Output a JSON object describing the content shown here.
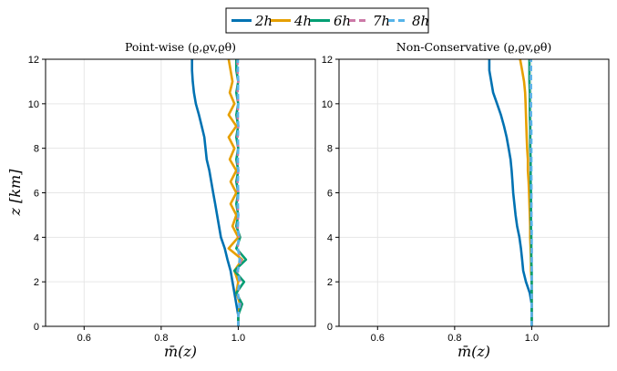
{
  "figure_title": "",
  "colors": {
    "2h": "#0072B2",
    "4h": "#E69F00",
    "6h": "#009E73",
    "7h": "#CC79A7",
    "8h": "#56B4E9",
    "grid": "#e6e6e6",
    "frame": "#000000"
  },
  "legend": {
    "items": [
      {
        "label": "2h",
        "color": "#0072B2",
        "dash": "solid"
      },
      {
        "label": "4h",
        "color": "#E69F00",
        "dash": "solid"
      },
      {
        "label": "6h",
        "color": "#009E73",
        "dash": "solid"
      },
      {
        "label": "7h",
        "color": "#CC79A7",
        "dash": "dashed"
      },
      {
        "label": "8h",
        "color": "#56B4E9",
        "dash": "dashed"
      }
    ]
  },
  "chart_data": [
    {
      "type": "line",
      "title": "Point-wise (ϱ,ϱv,ϱθ)",
      "xlabel": "m̄(z)",
      "ylabel": "z [km]",
      "xlim": [
        0.5,
        1.2
      ],
      "ylim": [
        0,
        12
      ],
      "xticks": [
        "0.6",
        "0.8",
        "1.0"
      ],
      "xtick_values": [
        0.6,
        0.8,
        1.0
      ],
      "yticks": [
        "0",
        "2",
        "4",
        "6",
        "8",
        "10",
        "12"
      ],
      "ytick_values": [
        0,
        2,
        4,
        6,
        8,
        10,
        12
      ],
      "grid": true,
      "series": [
        {
          "name": "2h",
          "z": [
            0.0,
            0.5,
            1.0,
            1.5,
            2.0,
            2.5,
            3.0,
            3.5,
            4.0,
            4.5,
            5.0,
            5.5,
            6.0,
            6.5,
            7.0,
            7.5,
            8.0,
            8.5,
            9.0,
            9.5,
            10.0,
            10.5,
            11.0,
            11.5,
            12.0
          ],
          "m": [
            1.0,
            1.0,
            0.995,
            0.99,
            0.985,
            0.98,
            0.972,
            0.965,
            0.955,
            0.95,
            0.945,
            0.94,
            0.935,
            0.93,
            0.925,
            0.918,
            0.915,
            0.912,
            0.905,
            0.898,
            0.89,
            0.885,
            0.882,
            0.88,
            0.88
          ]
        },
        {
          "name": "4h",
          "z": [
            0.0,
            0.5,
            1.0,
            1.5,
            2.0,
            2.5,
            3.0,
            3.5,
            4.0,
            4.5,
            5.0,
            5.5,
            6.0,
            6.5,
            7.0,
            7.5,
            8.0,
            8.5,
            9.0,
            9.5,
            10.0,
            10.5,
            11.0,
            11.5,
            12.0
          ],
          "m": [
            1.0,
            1.0,
            1.005,
            0.995,
            1.0,
            0.99,
            1.01,
            0.975,
            1.0,
            0.985,
            0.995,
            0.98,
            0.995,
            0.98,
            0.995,
            0.978,
            0.99,
            0.975,
            0.995,
            0.975,
            0.99,
            0.978,
            0.985,
            0.98,
            0.975
          ]
        },
        {
          "name": "6h",
          "z": [
            0.0,
            0.5,
            1.0,
            1.5,
            2.0,
            2.5,
            3.0,
            3.5,
            4.0,
            4.5,
            5.0,
            5.5,
            6.0,
            6.5,
            7.0,
            7.5,
            8.0,
            8.5,
            9.0,
            9.5,
            10.0,
            10.5,
            11.0,
            11.5,
            12.0
          ],
          "m": [
            1.0,
            1.0,
            1.01,
            0.995,
            1.015,
            0.99,
            1.02,
            0.995,
            1.005,
            0.995,
            1.0,
            0.995,
            1.0,
            0.995,
            1.0,
            0.995,
            1.0,
            0.995,
            1.0,
            0.995,
            1.0,
            0.995,
            1.0,
            0.995,
            0.995
          ]
        },
        {
          "name": "7h",
          "z": [
            0.0,
            0.5,
            1.0,
            1.5,
            2.0,
            2.5,
            3.0,
            3.5,
            4.0,
            4.5,
            5.0,
            5.5,
            6.0,
            6.5,
            7.0,
            7.5,
            8.0,
            8.5,
            9.0,
            9.5,
            10.0,
            10.5,
            11.0,
            11.5,
            12.0
          ],
          "m": [
            1.0,
            1.0,
            1.005,
            0.998,
            1.005,
            0.998,
            1.008,
            0.998,
            1.002,
            0.998,
            1.0,
            0.998,
            1.0,
            0.998,
            1.0,
            0.998,
            1.0,
            0.998,
            1.0,
            0.998,
            1.0,
            0.998,
            1.0,
            0.998,
            0.998
          ]
        },
        {
          "name": "8h",
          "z": [
            0.0,
            0.5,
            1.0,
            1.5,
            2.0,
            2.5,
            3.0,
            3.5,
            4.0,
            4.5,
            5.0,
            5.5,
            6.0,
            6.5,
            7.0,
            7.5,
            8.0,
            8.5,
            9.0,
            9.5,
            10.0,
            10.5,
            11.0,
            11.5,
            12.0
          ],
          "m": [
            1.0,
            1.0,
            1.003,
            0.999,
            1.003,
            0.999,
            1.004,
            0.999,
            1.001,
            0.999,
            1.0,
            0.999,
            1.0,
            0.999,
            1.0,
            0.999,
            1.0,
            0.999,
            1.0,
            0.999,
            1.0,
            0.999,
            1.0,
            0.999,
            0.999
          ]
        }
      ]
    },
    {
      "type": "line",
      "title": "Non-Conservative (ϱ,ϱv,ϱθ)",
      "xlabel": "m̄(z)",
      "ylabel": "",
      "xlim": [
        0.5,
        1.2
      ],
      "ylim": [
        0,
        12
      ],
      "xticks": [
        "0.6",
        "0.8",
        "1.0"
      ],
      "xtick_values": [
        0.6,
        0.8,
        1.0
      ],
      "yticks": [
        "0",
        "2",
        "4",
        "6",
        "8",
        "10",
        "12"
      ],
      "ytick_values": [
        0,
        2,
        4,
        6,
        8,
        10,
        12
      ],
      "grid": true,
      "series": [
        {
          "name": "2h",
          "z": [
            0.0,
            0.5,
            1.0,
            1.5,
            2.0,
            2.5,
            3.0,
            3.5,
            4.0,
            4.5,
            5.0,
            5.5,
            6.0,
            6.5,
            7.0,
            7.5,
            8.0,
            8.5,
            9.0,
            9.5,
            10.0,
            10.5,
            11.0,
            11.5,
            12.0
          ],
          "m": [
            1.0,
            1.0,
            1.0,
            0.995,
            0.985,
            0.978,
            0.975,
            0.972,
            0.968,
            0.962,
            0.958,
            0.955,
            0.952,
            0.95,
            0.948,
            0.945,
            0.94,
            0.935,
            0.928,
            0.92,
            0.91,
            0.9,
            0.895,
            0.89,
            0.89
          ]
        },
        {
          "name": "4h",
          "z": [
            0.0,
            0.5,
            1.0,
            1.5,
            2.0,
            2.5,
            3.0,
            3.5,
            4.0,
            4.5,
            5.0,
            5.5,
            6.0,
            6.5,
            7.0,
            7.5,
            8.0,
            8.5,
            9.0,
            9.5,
            10.0,
            10.5,
            11.0,
            11.5,
            12.0
          ],
          "m": [
            1.0,
            1.0,
            1.0,
            1.0,
            1.0,
            0.998,
            0.998,
            0.997,
            0.996,
            0.996,
            0.995,
            0.994,
            0.993,
            0.992,
            0.99,
            0.99,
            0.988,
            0.987,
            0.986,
            0.985,
            0.984,
            0.983,
            0.98,
            0.975,
            0.97
          ]
        },
        {
          "name": "6h",
          "z": [
            0.0,
            0.5,
            1.0,
            1.5,
            2.0,
            2.5,
            3.0,
            3.5,
            4.0,
            4.5,
            5.0,
            5.5,
            6.0,
            6.5,
            7.0,
            7.5,
            8.0,
            8.5,
            9.0,
            9.5,
            10.0,
            10.5,
            11.0,
            11.5,
            12.0
          ],
          "m": [
            1.0,
            1.0,
            1.0,
            1.0,
            1.0,
            1.0,
            0.999,
            0.999,
            0.999,
            0.998,
            0.998,
            0.998,
            0.998,
            0.997,
            0.997,
            0.997,
            0.996,
            0.996,
            0.996,
            0.995,
            0.995,
            0.995,
            0.994,
            0.994,
            0.994
          ]
        },
        {
          "name": "7h",
          "z": [
            0.0,
            0.5,
            1.0,
            1.5,
            2.0,
            2.5,
            3.0,
            3.5,
            4.0,
            4.5,
            5.0,
            5.5,
            6.0,
            6.5,
            7.0,
            7.5,
            8.0,
            8.5,
            9.0,
            9.5,
            10.0,
            10.5,
            11.0,
            11.5,
            12.0
          ],
          "m": [
            1.0,
            1.0,
            1.0,
            1.0,
            1.0,
            1.0,
            1.0,
            1.0,
            0.999,
            0.999,
            0.999,
            0.999,
            0.999,
            0.999,
            0.998,
            0.998,
            0.998,
            0.998,
            0.998,
            0.997,
            0.997,
            0.997,
            0.997,
            0.997,
            0.997
          ]
        },
        {
          "name": "8h",
          "z": [
            0.0,
            0.5,
            1.0,
            1.5,
            2.0,
            2.5,
            3.0,
            3.5,
            4.0,
            4.5,
            5.0,
            5.5,
            6.0,
            6.5,
            7.0,
            7.5,
            8.0,
            8.5,
            9.0,
            9.5,
            10.0,
            10.5,
            11.0,
            11.5,
            12.0
          ],
          "m": [
            1.0,
            1.0,
            1.0,
            1.0,
            1.0,
            1.0,
            1.0,
            1.0,
            1.0,
            1.0,
            0.999,
            0.999,
            0.999,
            0.999,
            0.999,
            0.999,
            0.999,
            0.999,
            0.999,
            0.998,
            0.998,
            0.998,
            0.998,
            0.998,
            0.998
          ]
        }
      ]
    }
  ]
}
